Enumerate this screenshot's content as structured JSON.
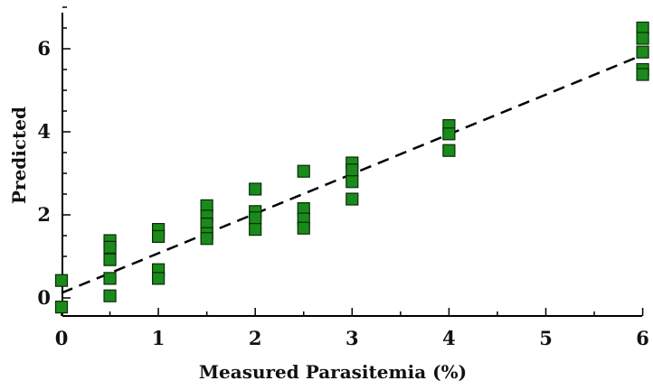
{
  "chart_data": {
    "type": "scatter",
    "title": "",
    "xlabel": "Measured Parasitemia (%)",
    "ylabel": "Predicted",
    "xlim": [
      0,
      6
    ],
    "ylim": [
      -0.3,
      7
    ],
    "x_ticks": [
      0,
      1,
      2,
      3,
      4,
      5,
      6
    ],
    "y_ticks": [
      0,
      2,
      4,
      6
    ],
    "grid": false,
    "marker": "square",
    "marker_color": "#1a8a1a",
    "marker_edge_color": "#0a2a0a",
    "points": [
      {
        "x": 0,
        "y": 0.42
      },
      {
        "x": 0,
        "y": -0.22
      },
      {
        "x": 0.5,
        "y": 1.38
      },
      {
        "x": 0.5,
        "y": 1.22
      },
      {
        "x": 0.5,
        "y": 0.92
      },
      {
        "x": 0.5,
        "y": 0.47
      },
      {
        "x": 0.5,
        "y": 0.05
      },
      {
        "x": 1,
        "y": 1.65
      },
      {
        "x": 1,
        "y": 1.48
      },
      {
        "x": 1,
        "y": 0.68
      },
      {
        "x": 1,
        "y": 0.47
      },
      {
        "x": 1.5,
        "y": 2.22
      },
      {
        "x": 1.5,
        "y": 1.97
      },
      {
        "x": 1.5,
        "y": 1.78
      },
      {
        "x": 1.5,
        "y": 1.55
      },
      {
        "x": 1.5,
        "y": 1.43
      },
      {
        "x": 2,
        "y": 2.62
      },
      {
        "x": 2,
        "y": 2.08
      },
      {
        "x": 2,
        "y": 1.93
      },
      {
        "x": 2,
        "y": 1.65
      },
      {
        "x": 2.5,
        "y": 3.05
      },
      {
        "x": 2.5,
        "y": 2.15
      },
      {
        "x": 2.5,
        "y": 1.9
      },
      {
        "x": 2.5,
        "y": 1.68
      },
      {
        "x": 3,
        "y": 3.25
      },
      {
        "x": 3,
        "y": 3.08
      },
      {
        "x": 3,
        "y": 2.8
      },
      {
        "x": 3,
        "y": 2.38
      },
      {
        "x": 4,
        "y": 4.15
      },
      {
        "x": 4,
        "y": 3.95
      },
      {
        "x": 4,
        "y": 3.55
      },
      {
        "x": 6,
        "y": 6.5
      },
      {
        "x": 6,
        "y": 6.25
      },
      {
        "x": 6,
        "y": 5.92
      },
      {
        "x": 6,
        "y": 5.5
      },
      {
        "x": 6,
        "y": 5.38
      }
    ],
    "fit_line": {
      "style": "dashed",
      "color": "#000000",
      "x": [
        0,
        6
      ],
      "y": [
        0.12,
        5.85
      ]
    }
  }
}
